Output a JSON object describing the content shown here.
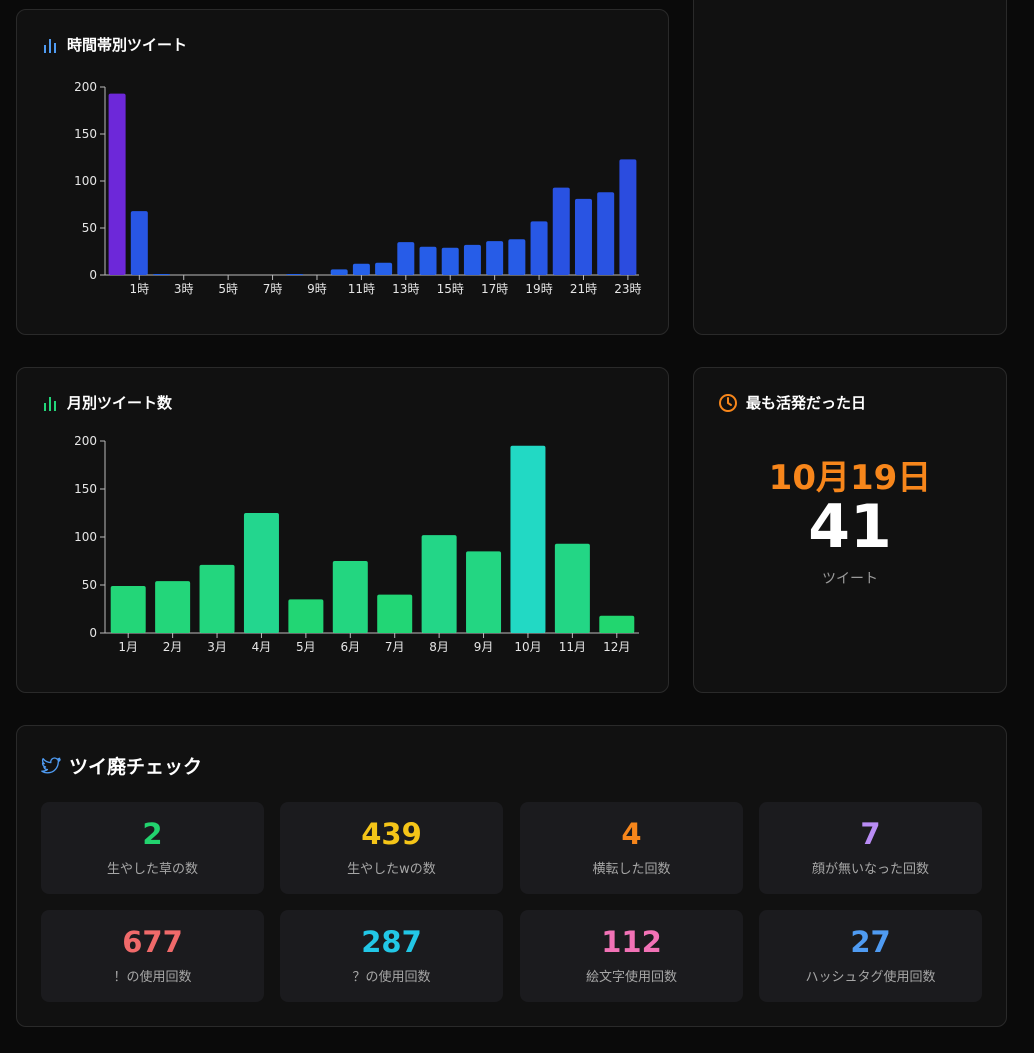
{
  "hourly": {
    "title": "時間帯別ツイート",
    "chart_data": {
      "type": "bar",
      "categories": [
        "0時",
        "1時",
        "2時",
        "3時",
        "4時",
        "5時",
        "6時",
        "7時",
        "8時",
        "9時",
        "10時",
        "11時",
        "12時",
        "13時",
        "14時",
        "15時",
        "16時",
        "17時",
        "18時",
        "19時",
        "20時",
        "21時",
        "22時",
        "23時"
      ],
      "tick_labels": [
        "1時",
        "3時",
        "5時",
        "7時",
        "9時",
        "11時",
        "13時",
        "15時",
        "17時",
        "19時",
        "21時",
        "23時"
      ],
      "values": [
        193,
        68,
        1,
        0,
        0,
        0,
        0,
        0,
        1,
        0,
        6,
        12,
        13,
        35,
        30,
        29,
        32,
        36,
        38,
        57,
        93,
        81,
        88,
        123
      ],
      "yticks": [
        0,
        50,
        100,
        150,
        200
      ],
      "ylim": [
        0,
        200
      ]
    }
  },
  "monthly": {
    "title": "月別ツイート数",
    "chart_data": {
      "type": "bar",
      "categories": [
        "1月",
        "2月",
        "3月",
        "4月",
        "5月",
        "6月",
        "7月",
        "8月",
        "9月",
        "10月",
        "11月",
        "12月"
      ],
      "values": [
        49,
        54,
        71,
        125,
        35,
        75,
        40,
        102,
        85,
        195,
        93,
        18
      ],
      "yticks": [
        0,
        50,
        100,
        150,
        200
      ],
      "ylim": [
        0,
        200
      ]
    }
  },
  "most_active": {
    "title": "最も活発だった日",
    "date": "10月19日",
    "count": "41",
    "unit": "ツイート",
    "accent": "#f7861b"
  },
  "addiction": {
    "title": "ツイ廃チェック",
    "stats": [
      {
        "value": "2",
        "label": "生やした草の数",
        "color": "#22d36e"
      },
      {
        "value": "439",
        "label": "生やしたwの数",
        "color": "#f5c518"
      },
      {
        "value": "4",
        "label": "横転した回数",
        "color": "#f7861b"
      },
      {
        "value": "7",
        "label": "顔が無いなった回数",
        "color": "#b98cf5"
      },
      {
        "value": "677",
        "label": "！の使用回数",
        "color": "#f06a6a"
      },
      {
        "value": "287",
        "label": "？の使用回数",
        "color": "#22c7e6"
      },
      {
        "value": "112",
        "label": "絵文字使用回数",
        "color": "#f272b6"
      },
      {
        "value": "27",
        "label": "ハッシュタグ使用回数",
        "color": "#4f9bf2"
      }
    ]
  },
  "colors": {
    "hourly_bar": "#2563eb",
    "monthly_bar": "#22d67a",
    "peak_hour_bar": "#6d28d9",
    "peak_month_bar": "#22d9c4"
  }
}
